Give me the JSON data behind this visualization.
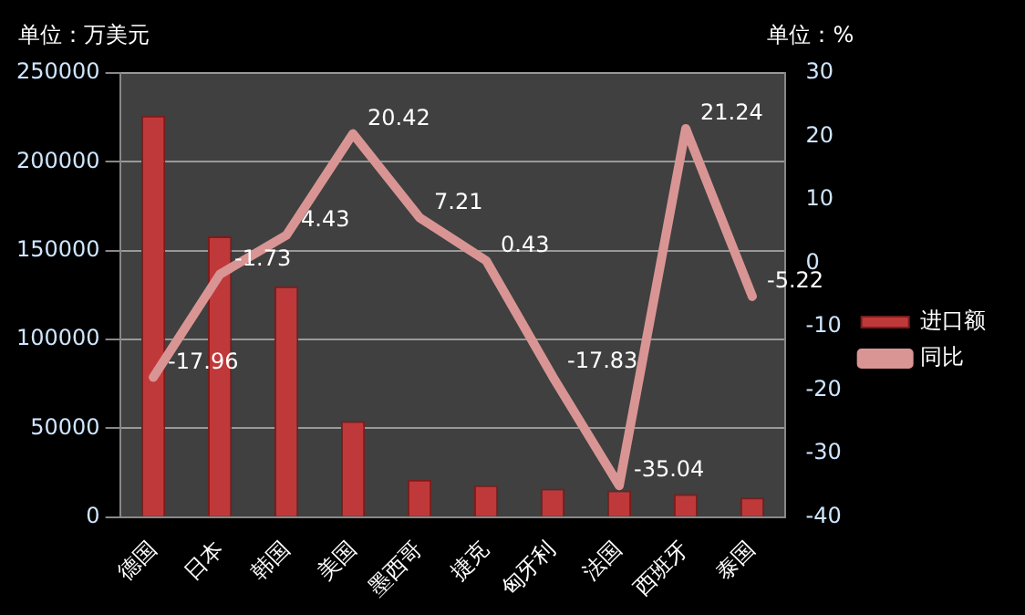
{
  "chart_data": {
    "type": "bar",
    "ylabel": "单位：万美元",
    "y2label": "单位：%",
    "categories": [
      "德国",
      "日本",
      "韩国",
      "美国",
      "墨西哥",
      "捷克",
      "匈牙利",
      "法国",
      "西班牙",
      "泰国"
    ],
    "series": [
      {
        "name": "进口额",
        "type": "bar",
        "color": "#c0393a",
        "values": [
          226000,
          158000,
          130000,
          54000,
          21000,
          18000,
          16000,
          15000,
          13000,
          11000
        ]
      },
      {
        "name": "同比",
        "type": "line",
        "axis": "y2",
        "color": "#d99594",
        "marker": "none",
        "values": [
          -17.96,
          -1.73,
          4.43,
          20.42,
          7.21,
          0.43,
          -17.83,
          -35.04,
          21.24,
          -5.22
        ],
        "value_labels": [
          "-17.96",
          "-1.73",
          "4.43",
          "20.42",
          "7.21",
          "0.43",
          "-17.83",
          "-35.04",
          "21.24",
          "-5.22"
        ]
      }
    ],
    "ylim": [
      0,
      250000
    ],
    "yticks": [
      0,
      50000,
      100000,
      150000,
      200000,
      250000
    ],
    "y2lim": [
      -40,
      30
    ],
    "y2ticks": [
      -40,
      -30,
      -20,
      -10,
      0,
      10,
      20,
      30
    ],
    "grid": "y",
    "legend": "right"
  }
}
